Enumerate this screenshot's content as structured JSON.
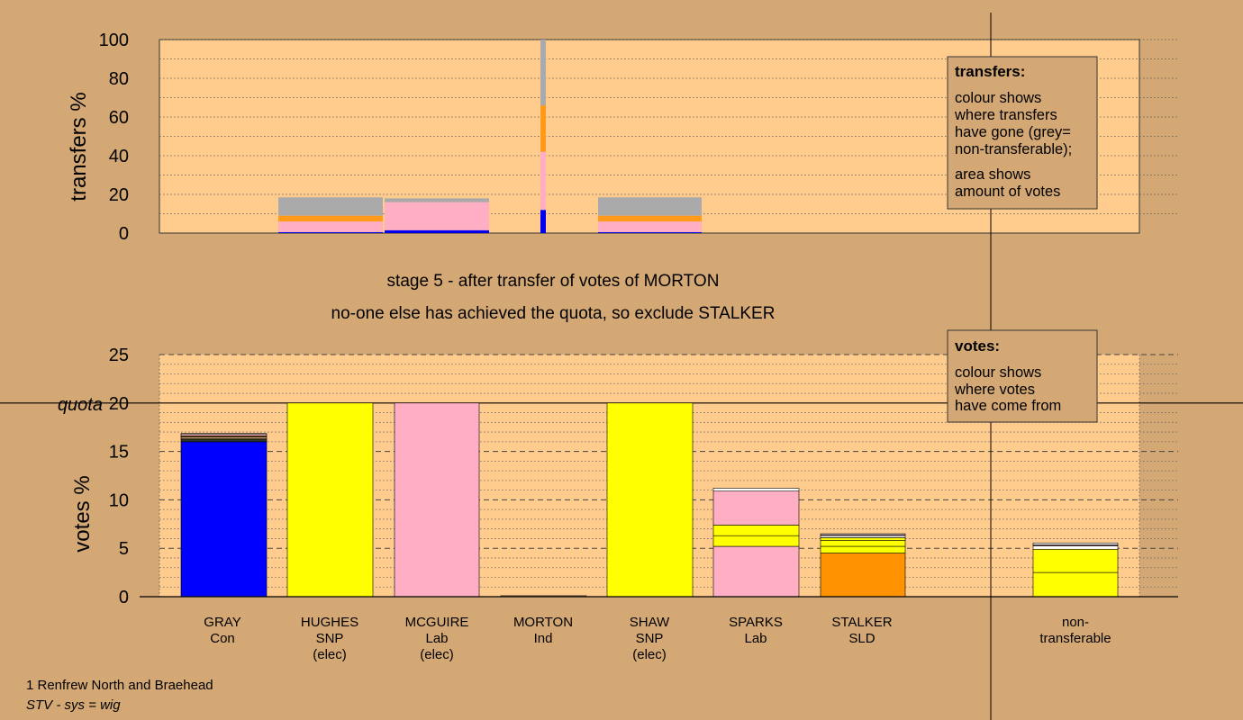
{
  "chart_data": [
    {
      "type": "bar",
      "panel": "transfers",
      "ylabel": "transfers %",
      "ylim": [
        0,
        100
      ],
      "yticks": [
        "0",
        "20",
        "40",
        "60",
        "80",
        "100"
      ],
      "colors": {
        "grey": "#aaaaaa",
        "orange": "#ff9a1a",
        "pink": "#ffaec4",
        "blue": "#0000ee",
        "tan": "#c9a27a"
      },
      "bars": [
        {
          "candidate": "HUGHES",
          "segments": [
            {
              "color": "blue",
              "value": 0.5
            },
            {
              "color": "pink",
              "value": 5.5
            },
            {
              "color": "orange",
              "value": 3.0
            },
            {
              "color": "grey",
              "value": 9.5
            }
          ]
        },
        {
          "candidate": "MCGUIRE",
          "segments": [
            {
              "color": "blue",
              "value": 1.5
            },
            {
              "color": "pink",
              "value": 14.5
            },
            {
              "color": "grey",
              "value": 2.0
            }
          ]
        },
        {
          "candidate": "MORTON",
          "narrow": true,
          "segments": [
            {
              "color": "blue",
              "value": 12.0
            },
            {
              "color": "pink",
              "value": 30.0
            },
            {
              "color": "orange",
              "value": 24.0
            },
            {
              "color": "grey",
              "value": 34.0
            }
          ]
        },
        {
          "candidate": "SHAW",
          "segments": [
            {
              "color": "blue",
              "value": 0.5
            },
            {
              "color": "pink",
              "value": 5.5
            },
            {
              "color": "orange",
              "value": 3.0
            },
            {
              "color": "grey",
              "value": 9.5
            }
          ]
        }
      ]
    },
    {
      "type": "bar",
      "panel": "votes",
      "ylabel": "votes %",
      "ylim": [
        0,
        25
      ],
      "yticks": [
        "0",
        "5",
        "10",
        "15",
        "20",
        "25"
      ],
      "quota": 20,
      "quota_label": "quota",
      "colors": {
        "blue": "#0000ff",
        "yellow": "#ffff00",
        "pink": "#ffaec4",
        "orange": "#ff9200",
        "white": "#ffffff",
        "tan": "#c9a27a",
        "green": "#4a6e22",
        "dark": "#333333"
      },
      "candidates": [
        {
          "name": "GRAY",
          "party": "Con",
          "elec": "",
          "segments": [
            {
              "color": "blue",
              "value": 16.0
            },
            {
              "color": "dark",
              "value": 0.2
            },
            {
              "color": "green",
              "value": 0.1
            },
            {
              "color": "tan",
              "value": 0.2
            },
            {
              "color": "orange",
              "value": 0.1
            },
            {
              "color": "pink",
              "value": 0.15
            },
            {
              "color": "white",
              "value": 0.1
            }
          ]
        },
        {
          "name": "HUGHES",
          "party": "SNP",
          "elec": "(elec)",
          "segments": [
            {
              "color": "yellow",
              "value": 20.0
            }
          ]
        },
        {
          "name": "MCGUIRE",
          "party": "Lab",
          "elec": "(elec)",
          "segments": [
            {
              "color": "pink",
              "value": 20.0
            }
          ]
        },
        {
          "name": "MORTON",
          "party": "Ind",
          "elec": "",
          "segments": [
            {
              "color": "tan",
              "value": 0.1
            }
          ]
        },
        {
          "name": "SHAW",
          "party": "SNP",
          "elec": "(elec)",
          "segments": [
            {
              "color": "yellow",
              "value": 20.0
            }
          ]
        },
        {
          "name": "SPARKS",
          "party": "Lab",
          "elec": "",
          "segments": [
            {
              "color": "pink",
              "value": 5.2
            },
            {
              "color": "yellow",
              "value": 1.1
            },
            {
              "color": "yellow",
              "value": 1.1
            },
            {
              "color": "pink",
              "value": 3.5
            },
            {
              "color": "white",
              "value": 0.3
            }
          ]
        },
        {
          "name": "STALKER",
          "party": "SLD",
          "elec": "",
          "segments": [
            {
              "color": "orange",
              "value": 4.5
            },
            {
              "color": "yellow",
              "value": 0.7
            },
            {
              "color": "yellow",
              "value": 0.6
            },
            {
              "color": "yellow",
              "value": 0.3
            },
            {
              "color": "white",
              "value": 0.2
            },
            {
              "color": "pink",
              "value": 0.1
            },
            {
              "color": "white",
              "value": 0.1
            }
          ]
        },
        {
          "name": "non-",
          "party": "transferable",
          "elec": "",
          "segments": [
            {
              "color": "yellow",
              "value": 2.5
            },
            {
              "color": "yellow",
              "value": 2.4
            },
            {
              "color": "white",
              "value": 0.35
            },
            {
              "color": "pink",
              "value": 0.1
            },
            {
              "color": "white",
              "value": 0.2
            }
          ]
        }
      ]
    }
  ],
  "stage_line1": "stage 5 - after transfer of votes of MORTON",
  "stage_line2": "no-one else has achieved the quota, so exclude STALKER",
  "legend_transfers": {
    "title": "transfers:",
    "lines": [
      "colour shows",
      "where transfers",
      "have gone (grey=",
      "non-transferable);",
      "area shows",
      "amount of votes"
    ]
  },
  "legend_votes": {
    "title": "votes:",
    "lines": [
      "colour shows",
      "where votes",
      "have come from"
    ]
  },
  "footer_ward": "1 Renfrew North and Braehead",
  "footer_system": "STV - sys = wig"
}
